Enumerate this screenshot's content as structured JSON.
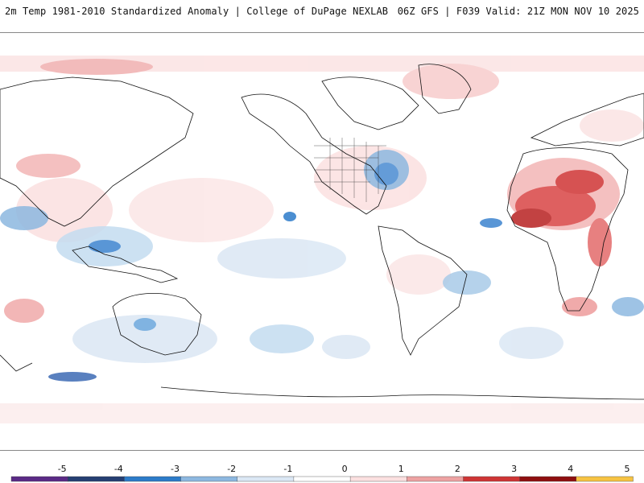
{
  "header": {
    "title_left": "2m Temp 1981-2010 Standardized Anomaly | College of DuPage NEXLAB",
    "title_right": "06Z GFS | F039 Valid: 21Z MON NOV 10 2025"
  },
  "colorbar": {
    "ticks": [
      "-5",
      "-4",
      "-3",
      "-2",
      "-1",
      "0",
      "1",
      "2",
      "3",
      "4",
      "5"
    ],
    "colors": [
      "#5b2a86",
      "#253f73",
      "#2c7bc9",
      "#8db8e0",
      "#dbe7f4",
      "#ffffff",
      "#fbe0e0",
      "#eda2a2",
      "#cf3535",
      "#8f0f10",
      "#f6c342"
    ]
  }
}
